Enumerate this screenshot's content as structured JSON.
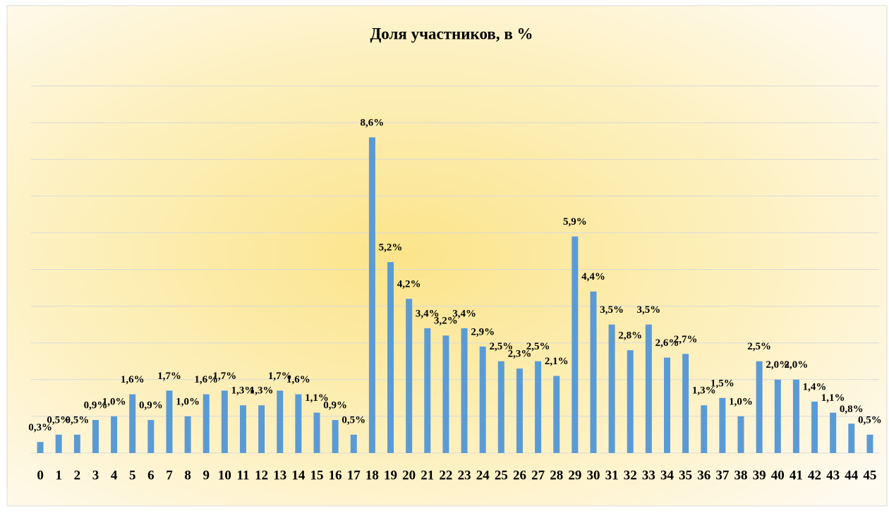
{
  "chart_data": {
    "type": "bar",
    "title": "Доля участников, в %",
    "categories": [
      "0",
      "1",
      "2",
      "3",
      "4",
      "5",
      "6",
      "7",
      "8",
      "9",
      "10",
      "11",
      "12",
      "13",
      "14",
      "15",
      "16",
      "17",
      "18",
      "19",
      "20",
      "21",
      "22",
      "23",
      "24",
      "25",
      "26",
      "27",
      "28",
      "29",
      "30",
      "31",
      "32",
      "33",
      "34",
      "35",
      "36",
      "37",
      "38",
      "39",
      "40",
      "41",
      "42",
      "43",
      "44",
      "45"
    ],
    "values": [
      0.3,
      0.5,
      0.5,
      0.9,
      1.0,
      1.6,
      0.9,
      1.7,
      1.0,
      1.6,
      1.7,
      1.3,
      1.3,
      1.7,
      1.6,
      1.1,
      0.9,
      0.5,
      8.6,
      5.2,
      4.2,
      3.4,
      3.2,
      3.4,
      2.9,
      2.5,
      2.3,
      2.5,
      2.1,
      5.9,
      4.4,
      3.5,
      2.8,
      3.5,
      2.6,
      2.7,
      1.3,
      1.5,
      1.0,
      2.5,
      2.0,
      2.0,
      1.4,
      1.1,
      0.8,
      0.5
    ],
    "value_labels": [
      "0,3%",
      "0,5%",
      "0,5%",
      "0,9%",
      "1,0%",
      "1,6%",
      "0,9%",
      "1,7%",
      "1,0%",
      "1,6%",
      "1,7%",
      "1,3%",
      "1,3%",
      "1,7%",
      "1,6%",
      "1,1%",
      "0,9%",
      "0,5%",
      "8,6%",
      "5,2%",
      "4,2%",
      "3,4%",
      "3,2%",
      "3,4%",
      "2,9%",
      "2,5%",
      "2,3%",
      "2,5%",
      "2,1%",
      "5,9%",
      "4,4%",
      "3,5%",
      "2,8%",
      "3,5%",
      "2,6%",
      "2,7%",
      "1,3%",
      "1,5%",
      "1,0%",
      "2,5%",
      "2,0%",
      "2,0%",
      "1,4%",
      "1,1%",
      "0,8%",
      "0,5%"
    ],
    "color": "#5b9bd5",
    "ylim": [
      0,
      10
    ],
    "yticks": [
      0,
      1,
      2,
      3,
      4,
      5,
      6,
      7,
      8,
      9,
      10
    ],
    "grid": true
  }
}
